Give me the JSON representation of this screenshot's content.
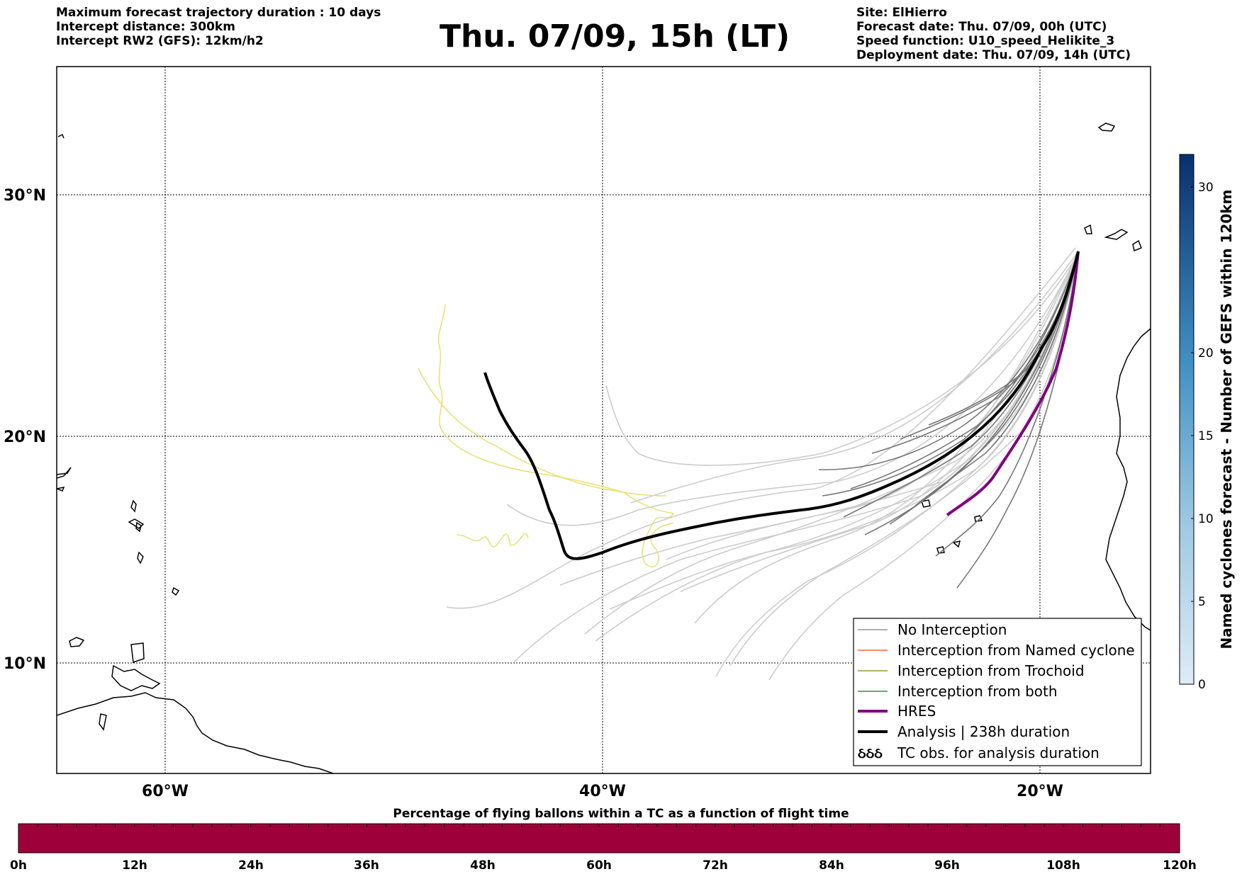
{
  "header_left": [
    "Maximum forecast trajectory duration : 10 days",
    "Intercept distance: 300km",
    "Intercept RW2 (GFS):  12km/h2"
  ],
  "title": "Thu. 07/09, 15h (LT)",
  "header_right": [
    "Site: ElHierro",
    "Forecast date: Thu. 07/09, 00h (UTC)",
    "Speed function: U10_speed_Helikite_3",
    "Deployment date: Thu. 07/09, 14h (UTC)"
  ],
  "map": {
    "lon_labels": [
      "60°W",
      "40°W",
      "20°W"
    ],
    "lat_labels": [
      "30°N",
      "20°N",
      "10°N"
    ],
    "lon_range": [
      -65,
      -15
    ],
    "lat_range": [
      5.3,
      34.6
    ]
  },
  "colorbar": {
    "title": "Named cyclones forecast - Number of GEFS within 120km",
    "ticks": [
      "0",
      "5",
      "10",
      "15",
      "20",
      "30"
    ],
    "color_low": "#deebf7",
    "color_high": "#08306b"
  },
  "legend": [
    {
      "label": "No Interception",
      "color": "#808080"
    },
    {
      "label": "Interception from Named cyclone",
      "color": "#ff4500"
    },
    {
      "label": "Interception from Trochoid",
      "color": "#808000"
    },
    {
      "label": "Interception from both",
      "color": "#008000"
    },
    {
      "label": "HRES",
      "color": "#800080"
    },
    {
      "label": "Analysis | 238h duration",
      "color": "#000000"
    },
    {
      "label": "TC obs. for analysis duration",
      "color": "#000000"
    }
  ],
  "legend_symbol": "ઠઠઠ",
  "progress": {
    "title": "Percentage of flying ballons within a TC as a function of flight time",
    "ticks": [
      "0h",
      "12h",
      "24h",
      "36h",
      "48h",
      "60h",
      "72h",
      "84h",
      "96h",
      "108h",
      "120h"
    ],
    "color": "#9e003a"
  }
}
